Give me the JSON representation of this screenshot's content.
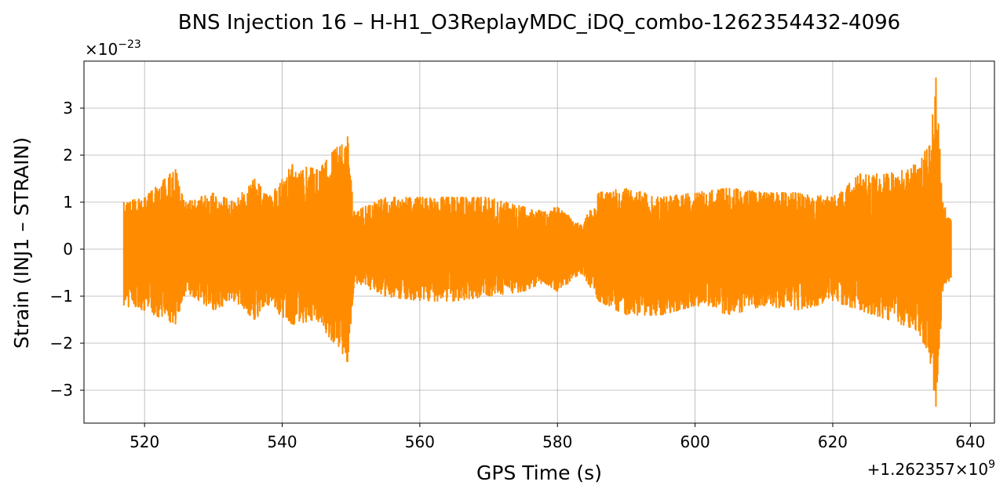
{
  "chart_data": {
    "type": "line",
    "title": "BNS Injection 16 – H-H1_O3ReplayMDC_iDQ_combo-1262354432-4096",
    "xlabel": "GPS Time (s)",
    "ylabel": "Strain (INJ1 – STRAIN)",
    "x_offset_text": {
      "prefix": "+1.262357×10",
      "exponent": "9"
    },
    "y_scale_text": {
      "prefix": "×10",
      "exponent": "−23"
    },
    "xlim": [
      511.2,
      643.5
    ],
    "ylim": [
      -3.7,
      4.0
    ],
    "x_ticks": [
      520,
      540,
      560,
      580,
      600,
      620,
      640
    ],
    "x_tick_labels": [
      "520",
      "540",
      "560",
      "580",
      "600",
      "620",
      "640"
    ],
    "y_ticks": [
      -3,
      -2,
      -1,
      0,
      1,
      2,
      3
    ],
    "y_tick_labels": [
      "−3",
      "−2",
      "−1",
      "0",
      "1",
      "2",
      "3"
    ],
    "grid": true,
    "series": [
      {
        "color": "#ff8c00",
        "x_range": [
          517.0,
          637.2
        ],
        "envelope": [
          {
            "x": 517.0,
            "max": 1.0,
            "min": -1.2
          },
          {
            "x": 520.0,
            "max": 1.1,
            "min": -1.3
          },
          {
            "x": 524.5,
            "max": 1.7,
            "min": -1.6
          },
          {
            "x": 526.0,
            "max": 1.0,
            "min": -0.9
          },
          {
            "x": 530.0,
            "max": 1.2,
            "min": -1.3
          },
          {
            "x": 533.0,
            "max": 1.0,
            "min": -1.1
          },
          {
            "x": 536.0,
            "max": 1.5,
            "min": -1.5
          },
          {
            "x": 538.0,
            "max": 1.1,
            "min": -1.2
          },
          {
            "x": 541.5,
            "max": 1.8,
            "min": -1.6
          },
          {
            "x": 545.0,
            "max": 1.7,
            "min": -1.5
          },
          {
            "x": 549.5,
            "max": 2.4,
            "min": -2.4
          },
          {
            "x": 550.5,
            "max": 0.8,
            "min": -0.7
          },
          {
            "x": 555.0,
            "max": 1.1,
            "min": -1.0
          },
          {
            "x": 560.0,
            "max": 1.1,
            "min": -1.1
          },
          {
            "x": 565.0,
            "max": 1.1,
            "min": -1.1
          },
          {
            "x": 570.0,
            "max": 1.1,
            "min": -1.0
          },
          {
            "x": 575.0,
            "max": 0.9,
            "min": -0.9
          },
          {
            "x": 578.0,
            "max": 0.8,
            "min": -0.7
          },
          {
            "x": 580.0,
            "max": 0.9,
            "min": -0.9
          },
          {
            "x": 583.5,
            "max": 0.5,
            "min": -0.5
          },
          {
            "x": 586.0,
            "max": 1.2,
            "min": -1.1
          },
          {
            "x": 590.0,
            "max": 1.3,
            "min": -1.4
          },
          {
            "x": 595.0,
            "max": 1.1,
            "min": -1.4
          },
          {
            "x": 600.0,
            "max": 1.2,
            "min": -1.2
          },
          {
            "x": 605.0,
            "max": 1.3,
            "min": -1.4
          },
          {
            "x": 610.0,
            "max": 1.2,
            "min": -1.2
          },
          {
            "x": 615.0,
            "max": 1.2,
            "min": -1.3
          },
          {
            "x": 620.0,
            "max": 1.1,
            "min": -1.1
          },
          {
            "x": 624.0,
            "max": 1.6,
            "min": -1.3
          },
          {
            "x": 628.0,
            "max": 1.6,
            "min": -1.5
          },
          {
            "x": 632.0,
            "max": 1.8,
            "min": -1.7
          },
          {
            "x": 634.0,
            "max": 2.2,
            "min": -2.2
          },
          {
            "x": 635.0,
            "max": 3.65,
            "min": -3.35
          },
          {
            "x": 636.0,
            "max": 1.0,
            "min": -0.9
          },
          {
            "x": 637.2,
            "max": 0.6,
            "min": -0.6
          }
        ]
      }
    ]
  }
}
